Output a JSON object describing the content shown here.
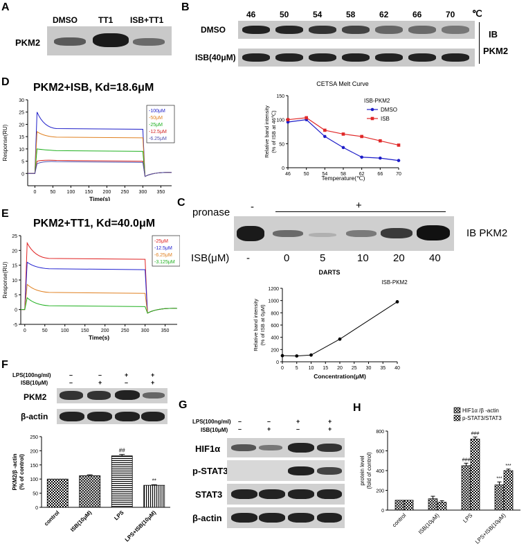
{
  "panel_letters": {
    "A": "A",
    "B": "B",
    "C": "C",
    "D": "D",
    "E": "E",
    "F": "F",
    "G": "G",
    "H": "H"
  },
  "panelA": {
    "target": "PKM2",
    "lanes": [
      "DMSO",
      "TT1",
      "ISB+TT1"
    ]
  },
  "panelB": {
    "temps": [
      "46",
      "50",
      "54",
      "58",
      "62",
      "66",
      "70"
    ],
    "unit": "℃",
    "rows": [
      "DMSO",
      "ISB(40μM)"
    ],
    "ib": "IB",
    "target": "PKM2"
  },
  "panelC": {
    "pronase": "pronase",
    "minus": "-",
    "plus": "+",
    "ib": "IB  PKM2",
    "isb_label": "ISB(μM)",
    "doses": [
      "-",
      "0",
      "5",
      "10",
      "20",
      "40"
    ]
  },
  "panelD": {
    "title": "PKM2+ISB, Kd=18.6μM"
  },
  "panelE": {
    "title": "PKM2+TT1, Kd=40.0μM"
  },
  "panelF": {
    "lps": "LPS(100ng/ml)",
    "isb": "ISB(10μM)",
    "lps_signs": [
      "–",
      "–",
      "+",
      "+"
    ],
    "isb_signs": [
      "–",
      "+",
      "–",
      "+"
    ],
    "rows": [
      "PKM2",
      "β-actin"
    ]
  },
  "panelG": {
    "lps": "LPS(100ng/ml)",
    "isb": "ISB(10μM)",
    "lps_signs": [
      "–",
      "–",
      "+",
      "+"
    ],
    "isb_signs": [
      "–",
      "+",
      "–",
      "+"
    ],
    "rows": [
      "HIF1α",
      "p-STAT3",
      "STAT3",
      "β-actin"
    ]
  },
  "chart_data": [
    {
      "id": "cetsa",
      "type": "line",
      "title": "CETSA Melt Curve",
      "legend_title": "ISB-PKM2",
      "xlabel": "Temperature(℃)",
      "ylabel": "Relative band intensity (% of ISB at 46℃)",
      "x": [
        46,
        50,
        54,
        58,
        62,
        66,
        70
      ],
      "xlim": [
        46,
        70
      ],
      "ylim": [
        0,
        150
      ],
      "yticks": [
        0,
        50,
        100,
        150
      ],
      "series": [
        {
          "name": "DMSO",
          "color": "#1c1cc8",
          "values": [
            95,
            100,
            65,
            42,
            22,
            20,
            15
          ]
        },
        {
          "name": "ISB",
          "color": "#e02828",
          "values": [
            100,
            104,
            78,
            70,
            65,
            56,
            47
          ]
        }
      ]
    },
    {
      "id": "darts",
      "type": "line",
      "title": "DARTS",
      "legend_title": "ISB-PKM2",
      "xlabel": "Concentration(μM)",
      "ylabel": "Relative band intensity (% of ISB at 0μM)",
      "x": [
        0,
        5,
        10,
        20,
        40
      ],
      "xlim": [
        0,
        40
      ],
      "xticks": [
        0,
        5,
        10,
        15,
        20,
        25,
        30,
        35,
        40
      ],
      "ylim": [
        0,
        1200
      ],
      "yticks": [
        0,
        200,
        400,
        600,
        800,
        1000,
        1200
      ],
      "series": [
        {
          "name": "ISB-PKM2",
          "color": "#000000",
          "values": [
            100,
            95,
            110,
            370,
            980
          ]
        }
      ]
    },
    {
      "id": "spr_d",
      "type": "line",
      "xlabel": "Time(s)",
      "ylabel": "Response(RU)",
      "xlim": [
        -20,
        380
      ],
      "ylim": [
        -5,
        30
      ],
      "xticks": [
        0,
        50,
        100,
        150,
        200,
        250,
        300,
        350
      ],
      "yticks": [
        0,
        5,
        10,
        15,
        20,
        25,
        30
      ],
      "series": [
        {
          "name": "-100μM",
          "color": "#1c1cc8",
          "peak": 25,
          "plateau": 18
        },
        {
          "name": "-50μM",
          "color": "#e08020",
          "peak": 17,
          "plateau": 14.5
        },
        {
          "name": "-25μM",
          "color": "#20b020",
          "peak": 10,
          "plateau": 9
        },
        {
          "name": "-12.5μM",
          "color": "#d02020",
          "peak": 5,
          "plateau": 5
        },
        {
          "name": "-6.25μM",
          "color": "#5050b0",
          "peak": 4,
          "plateau": 4.5
        }
      ]
    },
    {
      "id": "spr_e",
      "type": "line",
      "xlabel": "Time(s)",
      "ylabel": "Response(RU)",
      "xlim": [
        -10,
        380
      ],
      "ylim": [
        -5,
        25
      ],
      "xticks": [
        0,
        50,
        100,
        150,
        200,
        250,
        300,
        350
      ],
      "yticks": [
        -5,
        0,
        5,
        10,
        15,
        20,
        25
      ],
      "series": [
        {
          "name": "-25μM",
          "color": "#e02020",
          "peak": 22.5,
          "plateau": 17
        },
        {
          "name": "-12.5μM",
          "color": "#2020d0",
          "peak": 16,
          "plateau": 13.5
        },
        {
          "name": "-6.25μM",
          "color": "#e08020",
          "peak": 8.5,
          "plateau": 5.5
        },
        {
          "name": "-3.125μM",
          "color": "#20b020",
          "peak": 4,
          "plateau": 1
        }
      ]
    },
    {
      "id": "f_bar",
      "type": "bar",
      "ylabel": "PKM2/β -actin (% of control)",
      "categories": [
        "control",
        "ISB(10μM)",
        "LPS",
        "LPS+ISB(10μM)"
      ],
      "values": [
        100,
        112,
        182,
        78
      ],
      "errors": [
        0,
        3,
        5,
        2
      ],
      "annotations": [
        "",
        "",
        "##",
        "**"
      ],
      "ylim": [
        0,
        250
      ],
      "yticks": [
        0,
        50,
        100,
        150,
        200,
        250
      ]
    },
    {
      "id": "h_bar",
      "type": "bar",
      "ylabel": "protein level (fold of control)",
      "categories": [
        "control",
        "ISB(10μM)",
        "LPS",
        "LPS+ISB(10μM)"
      ],
      "ylim": [
        0,
        800
      ],
      "yticks": [
        0,
        200,
        400,
        600,
        800
      ],
      "series": [
        {
          "name": "HIF1α /β -actin",
          "values": [
            100,
            115,
            450,
            255
          ],
          "errors": [
            0,
            25,
            25,
            30
          ],
          "annotations": [
            "",
            "",
            "###",
            "***"
          ]
        },
        {
          "name": "p-STAT3/STAT3",
          "values": [
            100,
            80,
            720,
            400
          ],
          "errors": [
            0,
            15,
            20,
            15
          ],
          "annotations": [
            "",
            "",
            "###",
            "***"
          ]
        }
      ]
    }
  ]
}
